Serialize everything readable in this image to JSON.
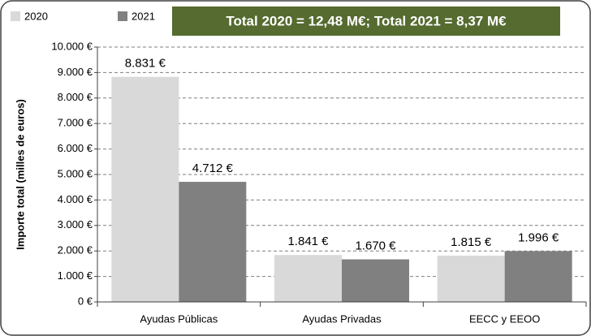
{
  "chart_data": {
    "type": "bar",
    "title": "Total 2020 = 12,48 M€; Total 2021 = 8,37 M€",
    "y_label": "Importe total (milles de euros)",
    "categories": [
      "Ayudas Públicas",
      "Ayudas Privadas",
      "EECC y EEOO"
    ],
    "series": [
      {
        "name": "2020",
        "color": "#d9d9d9",
        "values": [
          8831,
          1841,
          1815
        ],
        "value_labels": [
          "8.831 €",
          "1.841 €",
          "1.815 €"
        ]
      },
      {
        "name": "2021",
        "color": "#808080",
        "values": [
          4712,
          1670,
          1996
        ],
        "value_labels": [
          "4.712 €",
          "1.670 €",
          "1.996 €"
        ]
      }
    ],
    "ylim": [
      0,
      10000
    ],
    "yticks": [
      {
        "value": 0,
        "label": "0 €"
      },
      {
        "value": 1000,
        "label": "1.000 €"
      },
      {
        "value": 2000,
        "label": "2.000 €"
      },
      {
        "value": 3000,
        "label": "3.000 €"
      },
      {
        "value": 4000,
        "label": "4.000 €"
      },
      {
        "value": 5000,
        "label": "5.000 €"
      },
      {
        "value": 6000,
        "label": "6.000 €"
      },
      {
        "value": 7000,
        "label": "7.000 €"
      },
      {
        "value": 8000,
        "label": "8.000 €"
      },
      {
        "value": 9000,
        "label": "9.000 €"
      },
      {
        "value": 10000,
        "label": "10.000 €"
      }
    ],
    "grid": true,
    "legend": "top-left",
    "title_box_color": "#556b2f"
  }
}
